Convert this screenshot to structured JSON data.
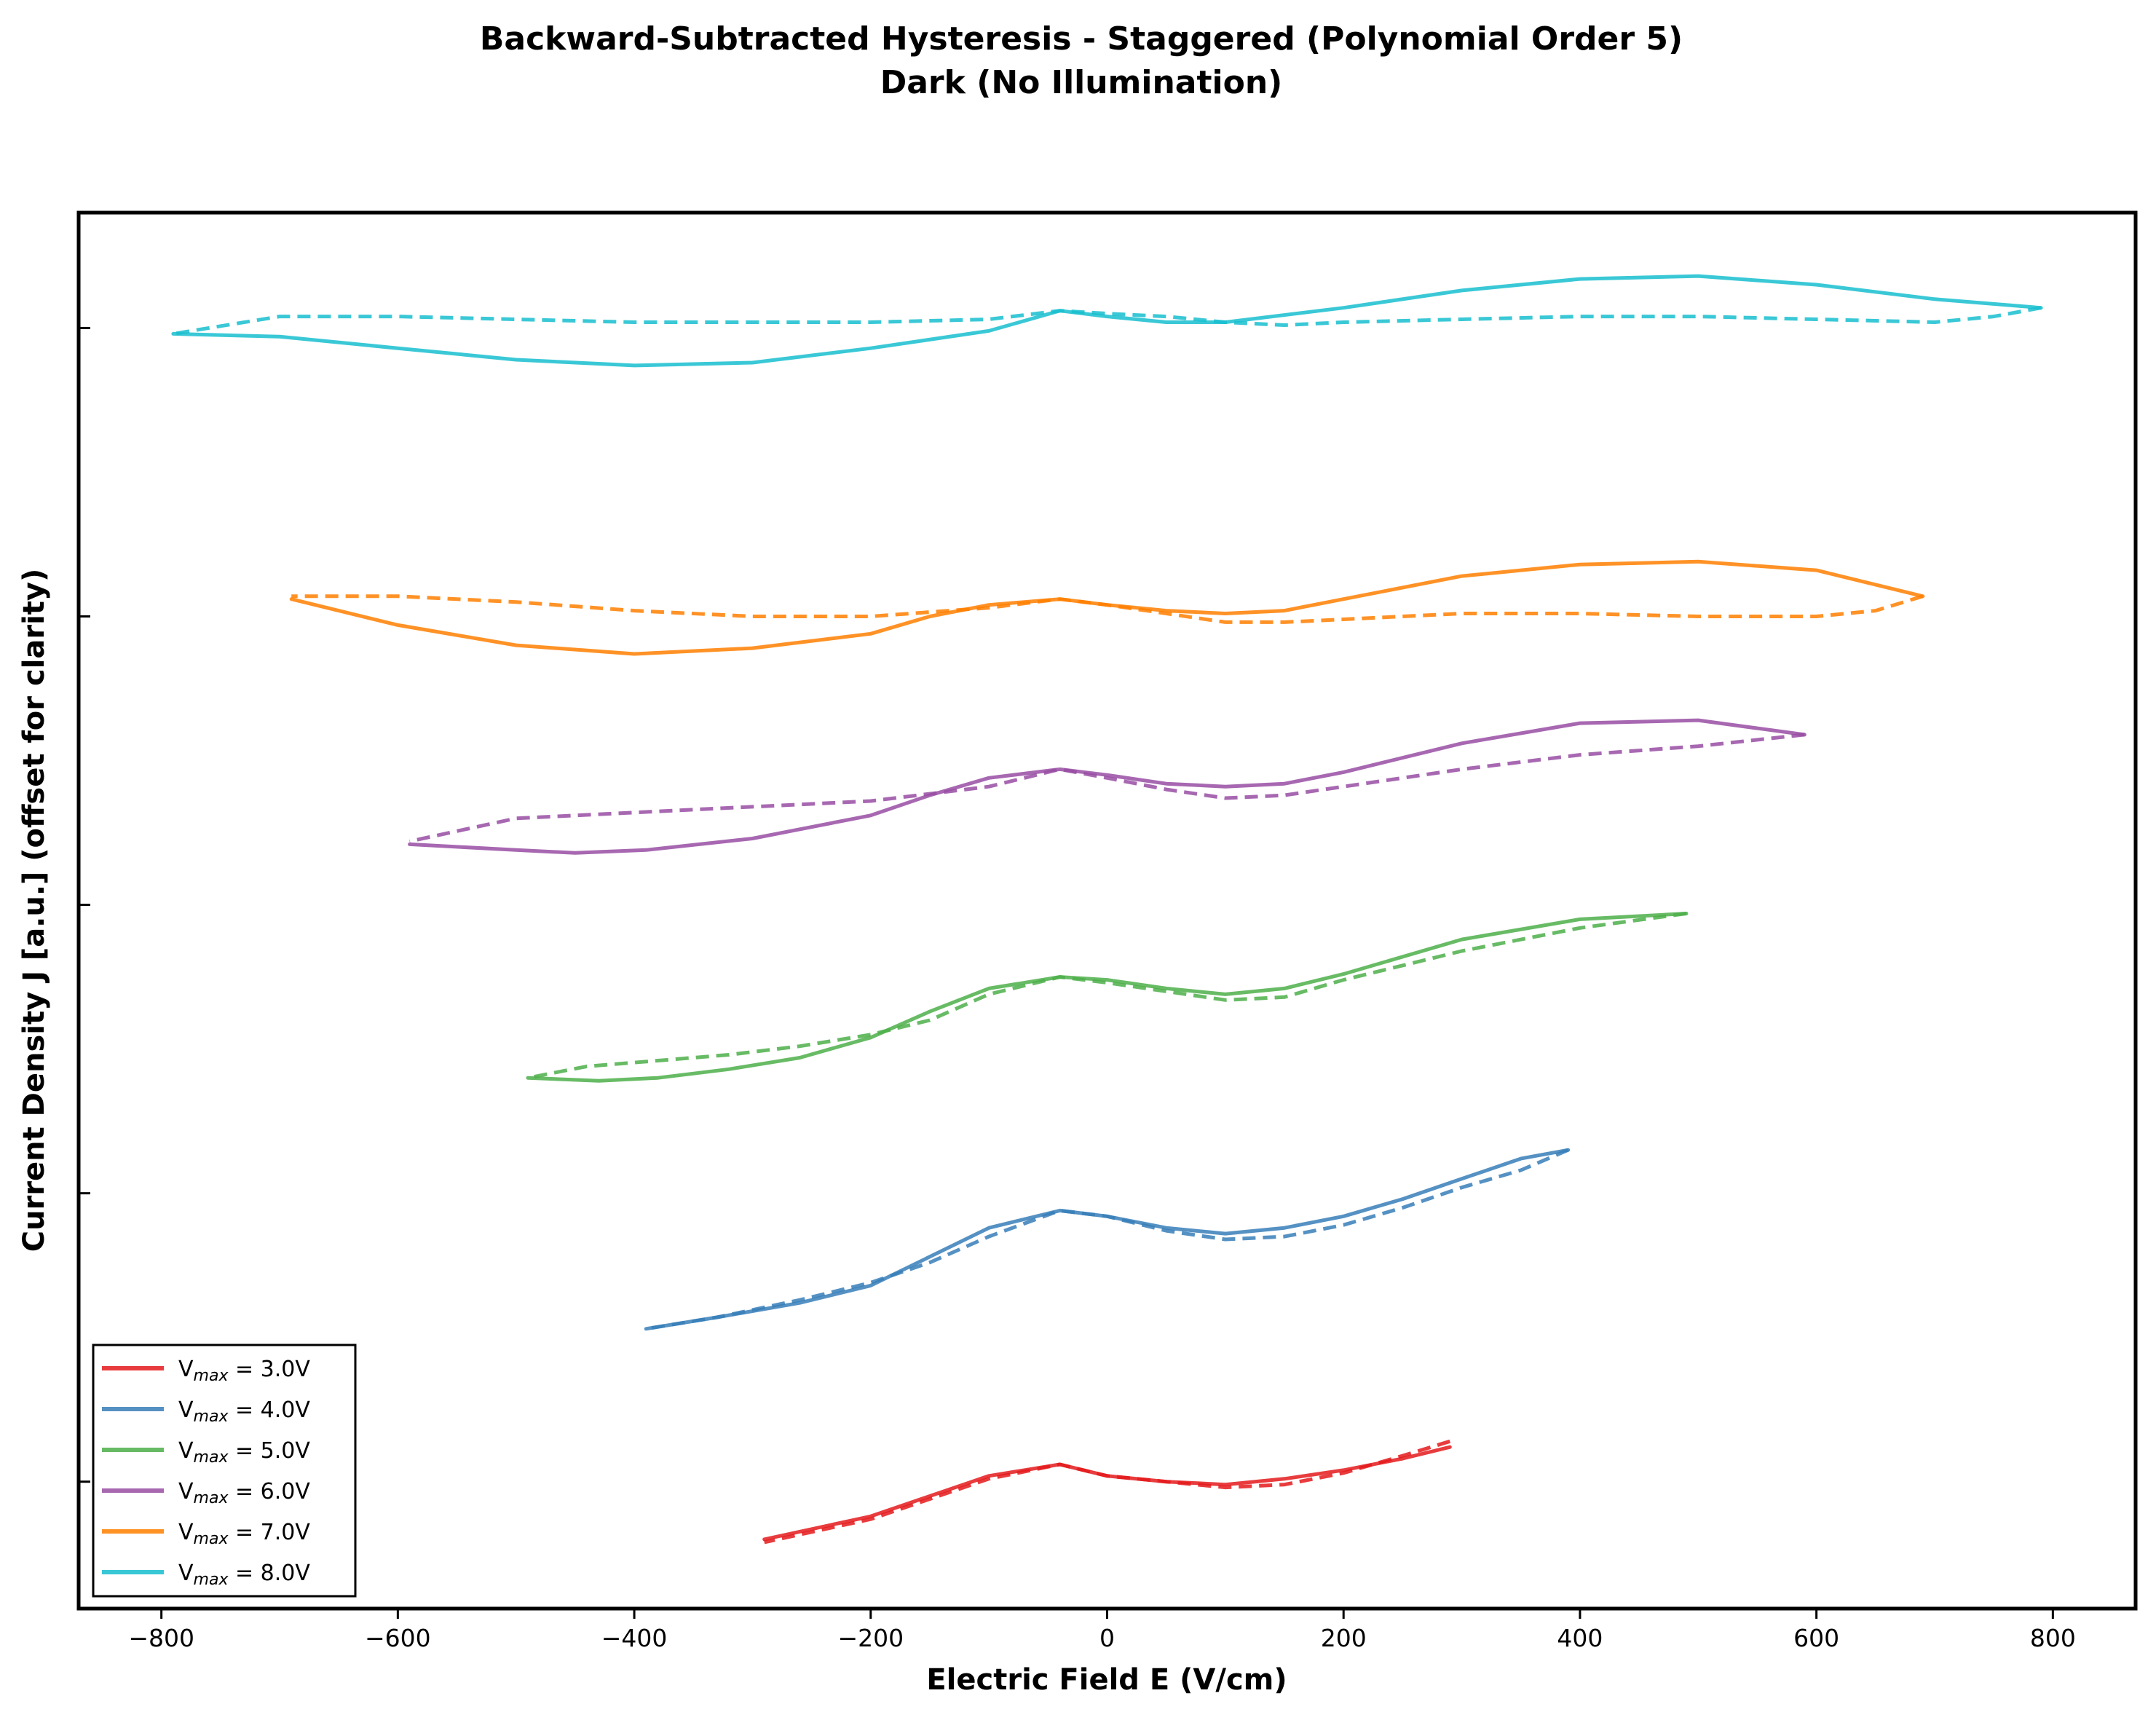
{
  "chart_data": {
    "type": "line",
    "title": "Backward-Subtracted Hysteresis - Staggered (Polynomial Order 5)",
    "subtitle": "Dark (No Illumination)",
    "xlabel": "Electric Field E (V/cm)",
    "ylabel": "Current Density J [a.u.] (offset for clarity)",
    "xlim": [
      -870,
      870
    ],
    "ylim": [
      -0.44,
      4.4
    ],
    "xticks": [
      -800,
      -600,
      -400,
      -200,
      0,
      200,
      400,
      600,
      800
    ],
    "xtick_labels": [
      "−800",
      "−600",
      "−400",
      "−200",
      "0",
      "200",
      "400",
      "600",
      "800"
    ],
    "yticks": [
      0,
      1,
      2,
      3,
      4
    ],
    "grid": false,
    "legend_position": "lower-left",
    "line_styles": {
      "forward": "solid",
      "backward": "dashed"
    },
    "series": [
      {
        "label_prefix": "V",
        "label_sub": "max",
        "label_value": " = 3.0V",
        "color": "#e41a1c",
        "offset": 0,
        "vmax_field": 290,
        "forward": [
          [
            -290,
            -0.2
          ],
          [
            -200,
            -0.12
          ],
          [
            -150,
            -0.05
          ],
          [
            -100,
            0.02
          ],
          [
            -40,
            0.06
          ],
          [
            0,
            0.02
          ],
          [
            50,
            0.0
          ],
          [
            100,
            -0.01
          ],
          [
            150,
            0.01
          ],
          [
            200,
            0.04
          ],
          [
            250,
            0.08
          ],
          [
            290,
            0.12
          ]
        ],
        "backward": [
          [
            290,
            0.14
          ],
          [
            250,
            0.09
          ],
          [
            200,
            0.03
          ],
          [
            150,
            -0.01
          ],
          [
            100,
            -0.02
          ],
          [
            50,
            0.0
          ],
          [
            0,
            0.02
          ],
          [
            -40,
            0.06
          ],
          [
            -100,
            0.01
          ],
          [
            -150,
            -0.06
          ],
          [
            -200,
            -0.13
          ],
          [
            -290,
            -0.21
          ]
        ]
      },
      {
        "label_prefix": "V",
        "label_sub": "max",
        "label_value": " = 4.0V",
        "color": "#377eb8",
        "offset": 1,
        "vmax_field": 390,
        "forward": [
          [
            -390,
            -0.47
          ],
          [
            -330,
            -0.43
          ],
          [
            -260,
            -0.38
          ],
          [
            -200,
            -0.32
          ],
          [
            -150,
            -0.22
          ],
          [
            -100,
            -0.12
          ],
          [
            -40,
            -0.06
          ],
          [
            0,
            -0.08
          ],
          [
            50,
            -0.12
          ],
          [
            100,
            -0.14
          ],
          [
            150,
            -0.12
          ],
          [
            200,
            -0.08
          ],
          [
            250,
            -0.02
          ],
          [
            300,
            0.05
          ],
          [
            350,
            0.12
          ],
          [
            390,
            0.15
          ]
        ],
        "backward": [
          [
            390,
            0.15
          ],
          [
            350,
            0.08
          ],
          [
            300,
            0.02
          ],
          [
            250,
            -0.05
          ],
          [
            200,
            -0.11
          ],
          [
            150,
            -0.15
          ],
          [
            100,
            -0.16
          ],
          [
            50,
            -0.13
          ],
          [
            0,
            -0.08
          ],
          [
            -40,
            -0.06
          ],
          [
            -100,
            -0.15
          ],
          [
            -150,
            -0.24
          ],
          [
            -200,
            -0.31
          ],
          [
            -260,
            -0.37
          ],
          [
            -330,
            -0.43
          ],
          [
            -390,
            -0.47
          ]
        ]
      },
      {
        "label_prefix": "V",
        "label_sub": "max",
        "label_value": " = 5.0V",
        "color": "#4daf4a",
        "offset": 2,
        "vmax_field": 490,
        "forward": [
          [
            -490,
            -0.6
          ],
          [
            -430,
            -0.61
          ],
          [
            -380,
            -0.6
          ],
          [
            -320,
            -0.57
          ],
          [
            -260,
            -0.53
          ],
          [
            -200,
            -0.46
          ],
          [
            -150,
            -0.37
          ],
          [
            -100,
            -0.29
          ],
          [
            -40,
            -0.25
          ],
          [
            0,
            -0.26
          ],
          [
            50,
            -0.29
          ],
          [
            100,
            -0.31
          ],
          [
            150,
            -0.29
          ],
          [
            200,
            -0.24
          ],
          [
            300,
            -0.12
          ],
          [
            400,
            -0.05
          ],
          [
            490,
            -0.03
          ]
        ],
        "backward": [
          [
            490,
            -0.03
          ],
          [
            400,
            -0.08
          ],
          [
            300,
            -0.16
          ],
          [
            200,
            -0.26
          ],
          [
            150,
            -0.32
          ],
          [
            100,
            -0.33
          ],
          [
            50,
            -0.3
          ],
          [
            0,
            -0.27
          ],
          [
            -40,
            -0.25
          ],
          [
            -100,
            -0.31
          ],
          [
            -150,
            -0.4
          ],
          [
            -200,
            -0.45
          ],
          [
            -260,
            -0.49
          ],
          [
            -320,
            -0.52
          ],
          [
            -380,
            -0.54
          ],
          [
            -440,
            -0.56
          ],
          [
            -490,
            -0.6
          ]
        ]
      },
      {
        "label_prefix": "V",
        "label_sub": "max",
        "label_value": " = 6.0V",
        "color": "#984ea3",
        "offset": 3,
        "vmax_field": 590,
        "forward": [
          [
            -590,
            -0.79
          ],
          [
            -500,
            -0.81
          ],
          [
            -450,
            -0.82
          ],
          [
            -390,
            -0.81
          ],
          [
            -300,
            -0.77
          ],
          [
            -200,
            -0.69
          ],
          [
            -150,
            -0.62
          ],
          [
            -100,
            -0.56
          ],
          [
            -40,
            -0.53
          ],
          [
            0,
            -0.55
          ],
          [
            50,
            -0.58
          ],
          [
            100,
            -0.59
          ],
          [
            150,
            -0.58
          ],
          [
            200,
            -0.54
          ],
          [
            300,
            -0.44
          ],
          [
            400,
            -0.37
          ],
          [
            500,
            -0.36
          ],
          [
            590,
            -0.41
          ]
        ],
        "backward": [
          [
            590,
            -0.41
          ],
          [
            500,
            -0.45
          ],
          [
            400,
            -0.48
          ],
          [
            300,
            -0.53
          ],
          [
            200,
            -0.59
          ],
          [
            150,
            -0.62
          ],
          [
            100,
            -0.63
          ],
          [
            50,
            -0.6
          ],
          [
            0,
            -0.56
          ],
          [
            -40,
            -0.53
          ],
          [
            -100,
            -0.59
          ],
          [
            -200,
            -0.64
          ],
          [
            -300,
            -0.66
          ],
          [
            -400,
            -0.68
          ],
          [
            -500,
            -0.7
          ],
          [
            -590,
            -0.78
          ]
        ]
      },
      {
        "label_prefix": "V",
        "label_sub": "max",
        "label_value": " = 7.0V",
        "color": "#ff7f00",
        "offset": 4,
        "vmax_field": 690,
        "forward": [
          [
            -690,
            -0.94
          ],
          [
            -600,
            -1.03
          ],
          [
            -500,
            -1.1
          ],
          [
            -400,
            -1.13
          ],
          [
            -300,
            -1.11
          ],
          [
            -200,
            -1.06
          ],
          [
            -150,
            -1.0
          ],
          [
            -100,
            -0.96
          ],
          [
            -40,
            -0.94
          ],
          [
            0,
            -0.96
          ],
          [
            50,
            -0.98
          ],
          [
            100,
            -0.99
          ],
          [
            150,
            -0.98
          ],
          [
            200,
            -0.94
          ],
          [
            300,
            -0.86
          ],
          [
            400,
            -0.82
          ],
          [
            500,
            -0.81
          ],
          [
            600,
            -0.84
          ],
          [
            690,
            -0.93
          ]
        ],
        "backward": [
          [
            690,
            -0.93
          ],
          [
            650,
            -0.98
          ],
          [
            600,
            -1.0
          ],
          [
            500,
            -1.0
          ],
          [
            400,
            -0.99
          ],
          [
            300,
            -0.99
          ],
          [
            200,
            -1.01
          ],
          [
            150,
            -1.02
          ],
          [
            100,
            -1.02
          ],
          [
            50,
            -0.99
          ],
          [
            0,
            -0.96
          ],
          [
            -40,
            -0.94
          ],
          [
            -100,
            -0.97
          ],
          [
            -200,
            -1.0
          ],
          [
            -300,
            -1.0
          ],
          [
            -400,
            -0.98
          ],
          [
            -500,
            -0.95
          ],
          [
            -600,
            -0.93
          ],
          [
            -690,
            -0.93
          ]
        ]
      },
      {
        "label_prefix": "V",
        "label_sub": "max",
        "label_value": " = 8.0V",
        "color": "#17becf",
        "offset": 5,
        "vmax_field": 790,
        "forward": [
          [
            -790,
            -1.02
          ],
          [
            -700,
            -1.03
          ],
          [
            -600,
            -1.07
          ],
          [
            -500,
            -1.11
          ],
          [
            -400,
            -1.13
          ],
          [
            -300,
            -1.12
          ],
          [
            -200,
            -1.07
          ],
          [
            -100,
            -1.01
          ],
          [
            -40,
            -0.94
          ],
          [
            0,
            -0.96
          ],
          [
            50,
            -0.98
          ],
          [
            100,
            -0.98
          ],
          [
            200,
            -0.93
          ],
          [
            300,
            -0.87
          ],
          [
            400,
            -0.83
          ],
          [
            500,
            -0.82
          ],
          [
            600,
            -0.85
          ],
          [
            700,
            -0.9
          ],
          [
            790,
            -0.93
          ]
        ],
        "backward": [
          [
            790,
            -0.93
          ],
          [
            750,
            -0.96
          ],
          [
            700,
            -0.98
          ],
          [
            600,
            -0.97
          ],
          [
            500,
            -0.96
          ],
          [
            400,
            -0.96
          ],
          [
            300,
            -0.97
          ],
          [
            200,
            -0.98
          ],
          [
            150,
            -0.99
          ],
          [
            100,
            -0.98
          ],
          [
            50,
            -0.96
          ],
          [
            0,
            -0.95
          ],
          [
            -40,
            -0.94
          ],
          [
            -100,
            -0.97
          ],
          [
            -200,
            -0.98
          ],
          [
            -300,
            -0.98
          ],
          [
            -400,
            -0.98
          ],
          [
            -500,
            -0.97
          ],
          [
            -600,
            -0.96
          ],
          [
            -700,
            -0.96
          ],
          [
            -790,
            -1.02
          ]
        ]
      }
    ]
  }
}
